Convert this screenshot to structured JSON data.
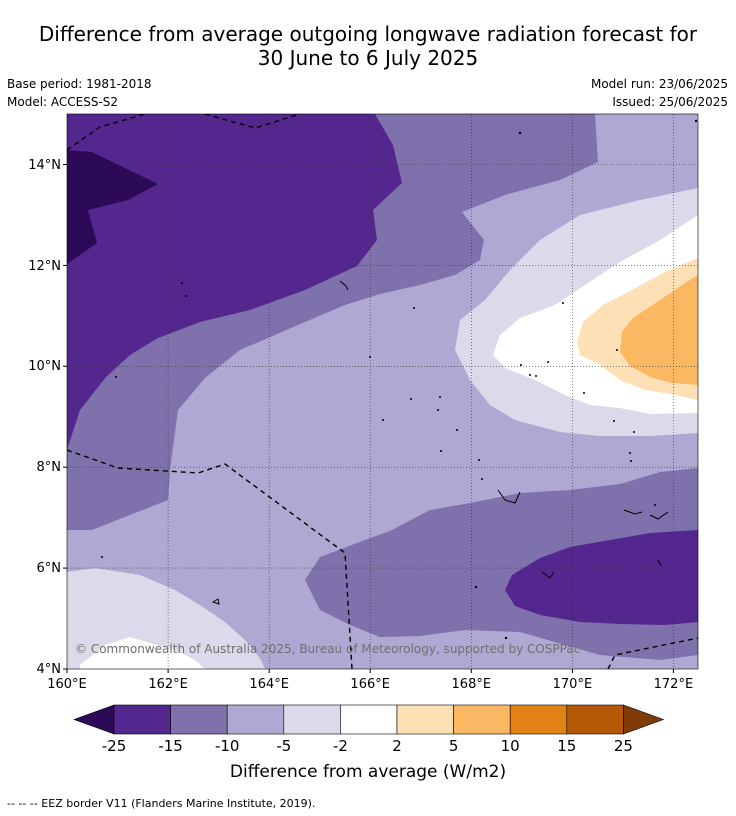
{
  "title_line1": "Difference from average outgoing longwave radiation forecast for",
  "title_line2": "30 June to 6 July 2025",
  "meta": {
    "base_period": "Base period: 1981-2018",
    "model": "Model: ACCESS-S2",
    "model_run": "Model run: 23/06/2025",
    "issued": "Issued: 25/06/2025"
  },
  "copyright": "© Commonwealth of Australia 2025, Bureau of Meteorology, supported by COSPPac",
  "map": {
    "lon_range": [
      160,
      172.5
    ],
    "lat_range": [
      4,
      15
    ],
    "lon_ticks": [
      "160°E",
      "162°E",
      "164°E",
      "166°E",
      "168°E",
      "170°E",
      "172°E"
    ],
    "lat_ticks": [
      "4°N",
      "6°N",
      "8°N",
      "10°N",
      "12°N",
      "14°N"
    ]
  },
  "colorbar": {
    "title": "Difference from average (W/m2)",
    "labels": [
      "-25",
      "-15",
      "-10",
      "-5",
      "-2",
      "2",
      "5",
      "10",
      "15",
      "25"
    ],
    "colors": [
      "#2c0a57",
      "#54278f",
      "#7f72ac",
      "#afa8d3",
      "#dadaeb",
      "#ffffff",
      "#fee0b6",
      "#fbb862",
      "#e08314",
      "#b35806",
      "#7f3b08"
    ]
  },
  "legend_note": "--  --  -- EEZ border V11 (Flanders Marine Institute, 2019)."
}
